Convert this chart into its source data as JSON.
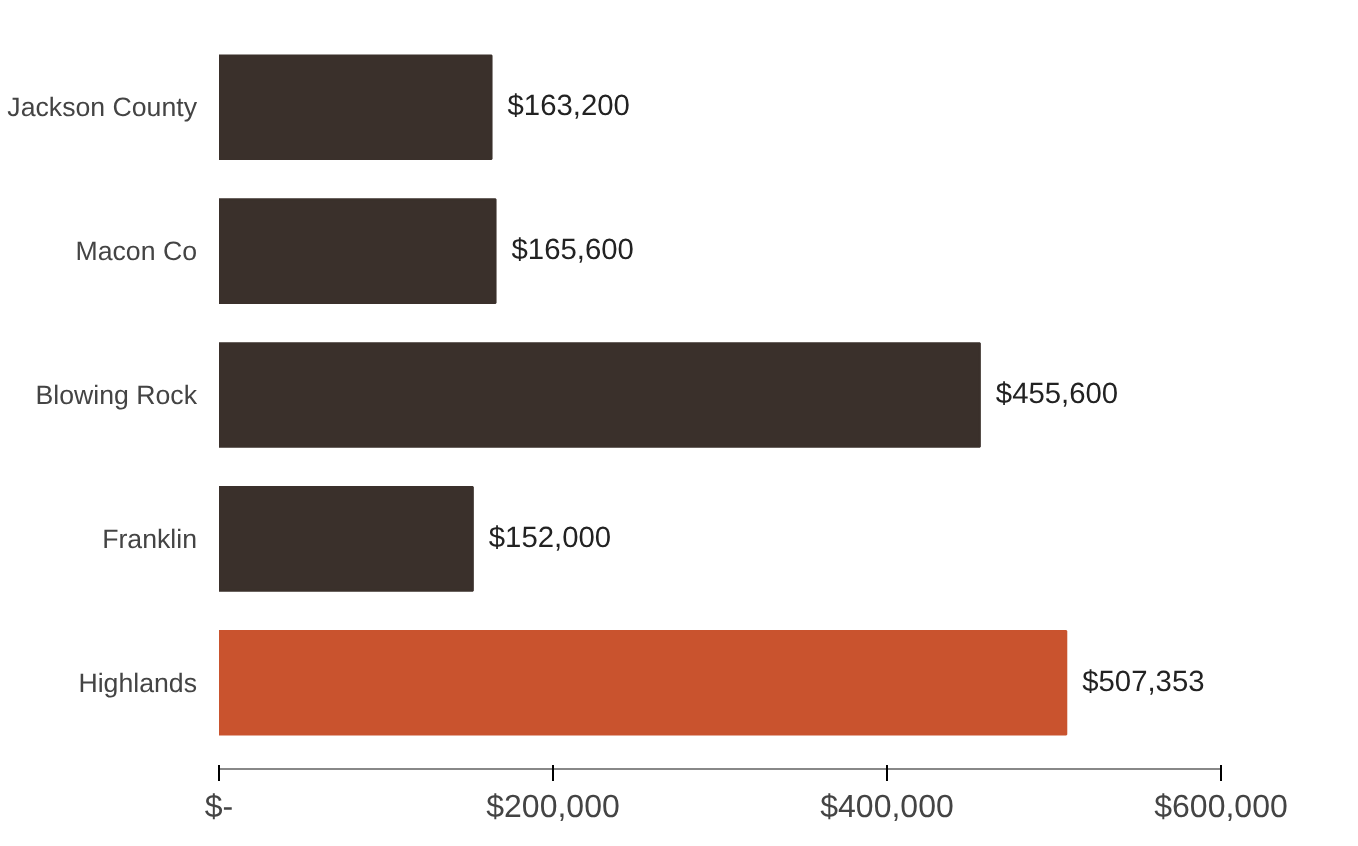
{
  "chart_data": {
    "type": "bar",
    "orientation": "horizontal",
    "categories": [
      "Jackson County",
      "Macon Co",
      "Blowing Rock",
      "Franklin",
      "Highlands"
    ],
    "values": [
      163200,
      165600,
      455600,
      152000,
      507353
    ],
    "colors": [
      "#3a302b",
      "#3a302b",
      "#3a302b",
      "#3a302b",
      "#c9532e"
    ],
    "value_labels": [
      "$163,200",
      "$165,600",
      "$455,600",
      "$152,000",
      "$507,353"
    ],
    "xlim": [
      0,
      600000
    ],
    "xticks": [
      {
        "value": 0,
        "label": "$-"
      },
      {
        "value": 200000,
        "label": "$200,000"
      },
      {
        "value": 400000,
        "label": "$400,000"
      },
      {
        "value": 600000,
        "label": "$600,000"
      }
    ],
    "grid": false
  }
}
